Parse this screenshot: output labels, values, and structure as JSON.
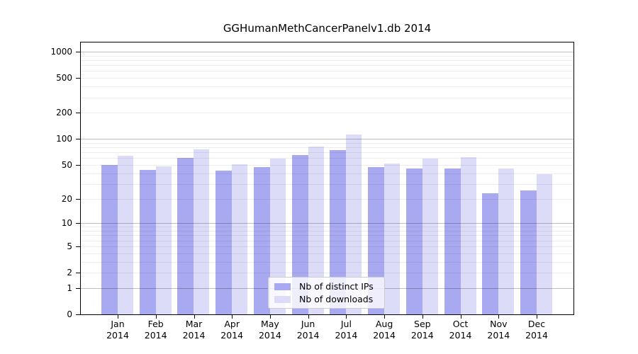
{
  "title": "GGHumanMethCancerPanelv1.db 2014",
  "chart_data": {
    "type": "bar",
    "title": "GGHumanMethCancerPanelv1.db 2014",
    "categories": [
      "Jan 2014",
      "Feb 2014",
      "Mar 2014",
      "Apr 2014",
      "May 2014",
      "Jun 2014",
      "Jul 2014",
      "Aug 2014",
      "Sep 2014",
      "Oct 2014",
      "Nov 2014",
      "Dec 2014"
    ],
    "x_tick_line1": [
      "Jan",
      "Feb",
      "Mar",
      "Apr",
      "May",
      "Jun",
      "Jul",
      "Aug",
      "Sep",
      "Oct",
      "Nov",
      "Dec"
    ],
    "x_tick_line2": "2014",
    "series": [
      {
        "name": "Nb of distinct IPs",
        "color": "#a9a9f1",
        "values": [
          50,
          44,
          60,
          43,
          47,
          65,
          74,
          47,
          45,
          45,
          23,
          25
        ]
      },
      {
        "name": "Nb of downloads",
        "color": "#dcdcf8",
        "values": [
          64,
          48,
          76,
          51,
          59,
          82,
          112,
          52,
          59,
          61,
          45,
          39
        ]
      }
    ],
    "yscale": "log1p",
    "ylabel": "",
    "xlabel": "",
    "y_ticks": [
      0,
      1,
      2,
      5,
      10,
      20,
      50,
      100,
      200,
      500,
      1000
    ],
    "ylim": [
      0,
      1275
    ],
    "grid": {
      "major_at": [
        1,
        10,
        100,
        1000
      ],
      "minor_at": "2-9 of each decade",
      "grid_above_bars": true
    },
    "legend_position": "bottom-center"
  },
  "colors": {
    "bar_dark": "#a9a9f1",
    "bar_light": "#dcdcf8",
    "grid_major": "rgba(0,0,0,0.25)",
    "grid_minor": "rgba(0,0,0,0.07)",
    "axis": "#000000",
    "legend_border": "#cccccc"
  }
}
